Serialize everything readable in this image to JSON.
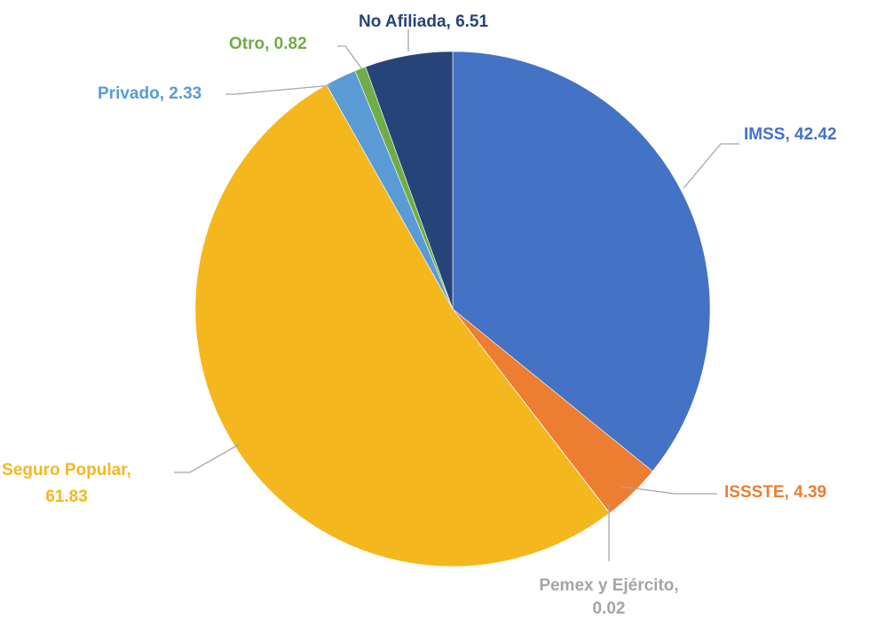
{
  "chart_data": {
    "type": "pie",
    "title": "",
    "start": "12 o'clock, clockwise",
    "slices": [
      {
        "label": "IMSS",
        "value": 42.42,
        "display": "IMSS, 42.42",
        "color": "#4472c4"
      },
      {
        "label": "ISSSTE",
        "value": 4.39,
        "display": "ISSSTE, 4.39",
        "color": "#ed7d31"
      },
      {
        "label": "Pemex y Ejército",
        "value": 0.02,
        "display": [
          "Pemex y Ejército,",
          "0.02"
        ],
        "color": "#a5a5a5"
      },
      {
        "label": "Seguro Popular",
        "value": 61.83,
        "display": [
          "Seguro Popular,",
          "61.83"
        ],
        "color": "#f4b81e"
      },
      {
        "label": "Privado",
        "value": 2.33,
        "display": "Privado, 2.33",
        "color": "#5b9bd5"
      },
      {
        "label": "Otro",
        "value": 0.82,
        "display": "Otro, 0.82",
        "color": "#70ad47"
      },
      {
        "label": "No Afiliada",
        "value": 6.51,
        "display": "No Afiliada, 6.51",
        "color": "#264478"
      }
    ],
    "label_colors": {
      "IMSS": "#4472c4",
      "ISSSTE": "#ed7d31",
      "Pemex y Ejército": "#a5a5a5",
      "Seguro Popular": "#f4b81e",
      "Privado": "#5b9bd5",
      "Otro": "#70ad47",
      "No Afiliada": "#264478"
    },
    "leader_line_color": "#a6a6a6"
  }
}
